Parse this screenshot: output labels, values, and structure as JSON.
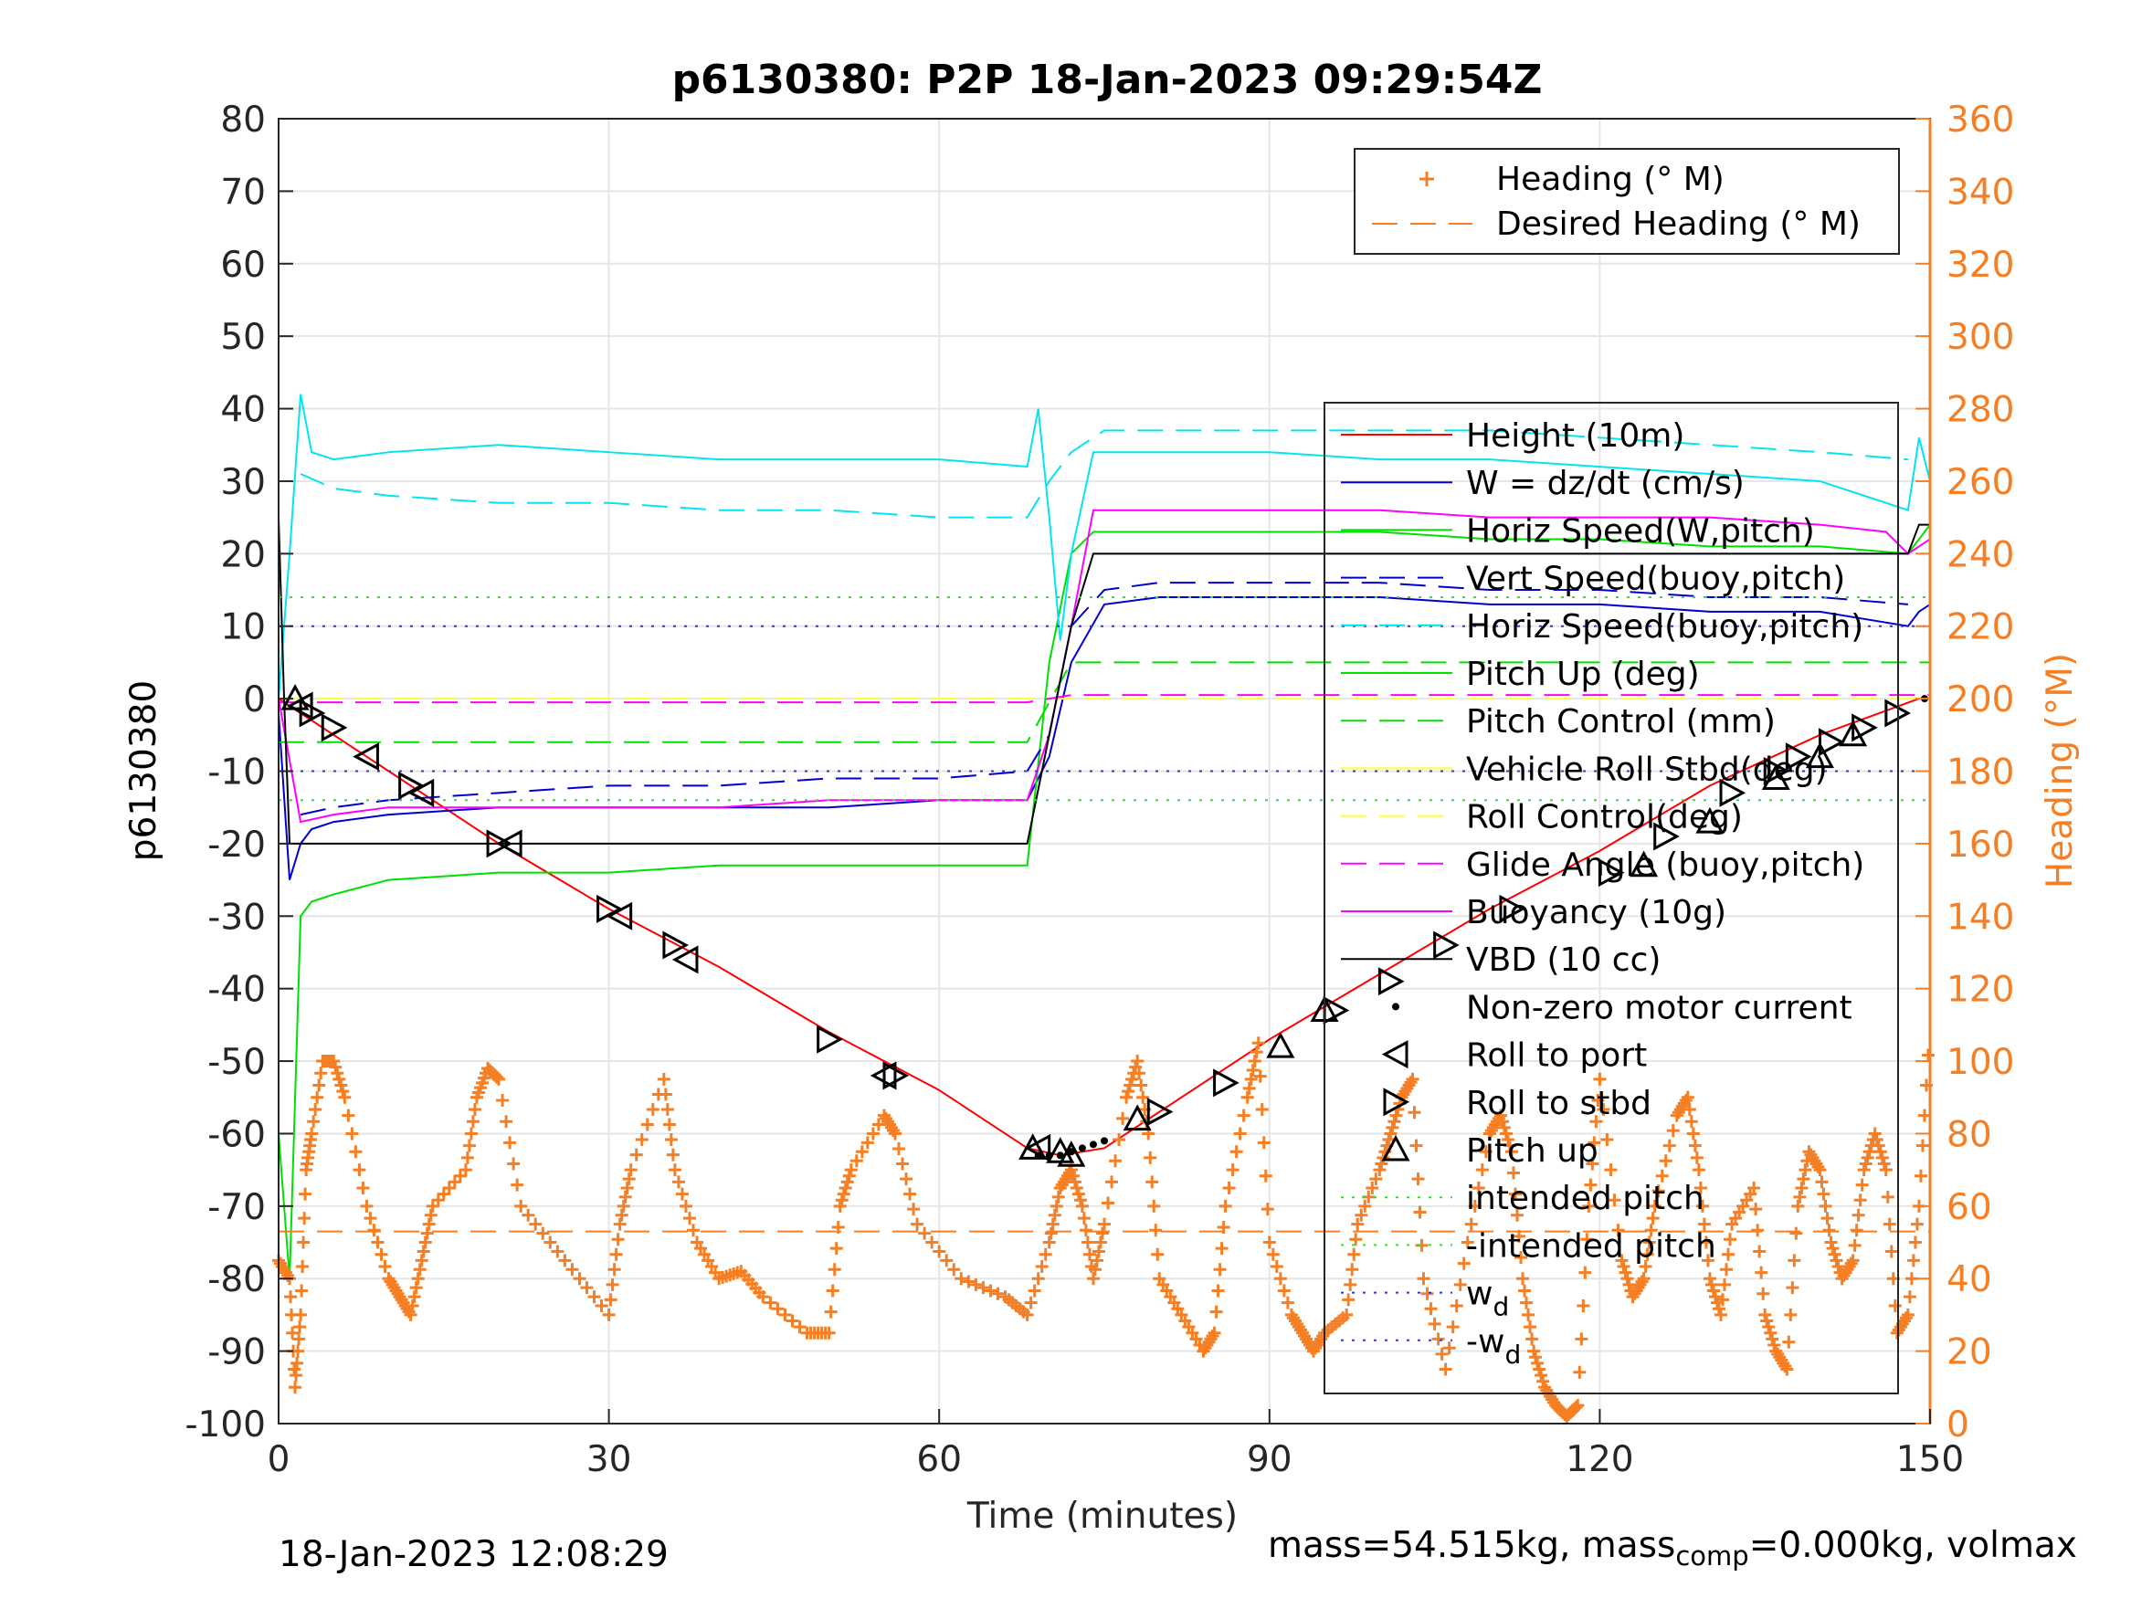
{
  "footer": {
    "left": "18-Jan-2023 12:08:29",
    "right_a": "mass=54.515kg, mass",
    "right_sub": "comp",
    "right_b": "=0.000kg, volmax"
  },
  "chart_data": {
    "type": "line",
    "title": "p6130380: P2P 18-Jan-2023 09:29:54Z",
    "xlabel": "Time (minutes)",
    "ylabel": "p6130380",
    "y2label": "Heading (°M)",
    "xlim": [
      0,
      150
    ],
    "ylim": [
      -100,
      80
    ],
    "y2lim": [
      0,
      360
    ],
    "xticks": [
      0,
      30,
      60,
      90,
      120,
      150
    ],
    "yticks": [
      80,
      70,
      60,
      50,
      40,
      30,
      20,
      10,
      0,
      -10,
      -20,
      -30,
      -40,
      -50,
      -60,
      -70,
      -80,
      -90,
      -100
    ],
    "y2ticks": [
      360,
      340,
      320,
      300,
      280,
      260,
      240,
      220,
      200,
      180,
      160,
      140,
      120,
      100,
      80,
      60,
      40,
      20,
      0
    ],
    "grid": true,
    "colors": {
      "heading": "#F57F25",
      "height": "#FF0000",
      "w": "#0000CD",
      "horiz_w": "#00E000",
      "vert_buoy": "#0000CD",
      "horiz_buoy": "#00E5EE",
      "pitch_up": "#00E000",
      "pitch_control": "#00E000",
      "roll": "#FFFF33",
      "roll_control": "#FFFF33",
      "glide_angle": "#FF00FF",
      "buoyancy": "#FF00FF",
      "vbd": "#000000",
      "intended_pitch": "#33DD33",
      "wd": "#3333DD"
    },
    "legend_heading": {
      "placement": "top-right",
      "entries": [
        "Heading (° M)",
        "Desired Heading (° M)"
      ]
    },
    "legend_main": {
      "placement": "right",
      "entries": [
        "Height (10m)",
        "W = dz/dt (cm/s)",
        "Horiz Speed(W,pitch)",
        "Vert Speed(buoy,pitch)",
        "Horiz Speed(buoy,pitch)",
        "Pitch Up (deg)",
        "Pitch Control (mm)",
        "Vehicle Roll Stbd(deg)",
        "Roll Control(deg)",
        "Glide Angle (buoy,pitch)",
        "Buoyancy (10g)",
        "VBD (10 cc)",
        "Non-zero motor current",
        "Roll to port",
        "Roll to stbd",
        "Pitch up",
        "intended pitch",
        "-intended pitch",
        "w",
        "-w"
      ],
      "wd_subscript": "d"
    },
    "series": [
      {
        "name": "Height (10m)",
        "axis": "left",
        "x": [
          0,
          2,
          10,
          20,
          30,
          40,
          50,
          60,
          68,
          71,
          75,
          80,
          90,
          100,
          110,
          120,
          130,
          140,
          149
        ],
        "y": [
          0,
          -2,
          -10,
          -20,
          -29,
          -37,
          -46,
          -54,
          -62,
          -63,
          -62,
          -57,
          -47,
          -38,
          -29,
          -21,
          -12,
          -5,
          0
        ]
      },
      {
        "name": "W = dz/dt (cm/s)",
        "axis": "left",
        "x": [
          0,
          1,
          2,
          3,
          5,
          10,
          20,
          30,
          40,
          50,
          60,
          68,
          70,
          72,
          75,
          80,
          90,
          100,
          110,
          120,
          130,
          140,
          148,
          149,
          150
        ],
        "y": [
          -2,
          -25,
          -20,
          -18,
          -17,
          -16,
          -15,
          -15,
          -15,
          -15,
          -14,
          -14,
          -8,
          5,
          13,
          14,
          14,
          14,
          13,
          13,
          12,
          12,
          10,
          12,
          13
        ]
      },
      {
        "name": "Horiz Speed(W,pitch)",
        "axis": "left",
        "x": [
          0,
          1,
          2,
          3,
          5,
          10,
          20,
          30,
          40,
          50,
          60,
          68,
          70,
          72,
          74,
          80,
          90,
          100,
          110,
          120,
          130,
          140,
          148,
          150
        ],
        "y": [
          -60,
          -80,
          -30,
          -28,
          -27,
          -25,
          -24,
          -24,
          -23,
          -23,
          -23,
          -23,
          5,
          20,
          23,
          23,
          23,
          23,
          22,
          22,
          21,
          21,
          20,
          24
        ]
      },
      {
        "name": "Vert Speed(buoy,pitch)",
        "axis": "left",
        "x": [
          2,
          5,
          10,
          20,
          30,
          40,
          50,
          60,
          68,
          70,
          72,
          75,
          80,
          90,
          100,
          110,
          120,
          130,
          140,
          148
        ],
        "y": [
          -16,
          -15,
          -14,
          -13,
          -12,
          -12,
          -11,
          -11,
          -10,
          -5,
          10,
          15,
          16,
          16,
          16,
          15,
          15,
          14,
          14,
          13
        ]
      },
      {
        "name": "Horiz Speed(buoy,pitch) (dashed)",
        "axis": "left",
        "x": [
          2,
          5,
          10,
          20,
          30,
          40,
          50,
          60,
          68,
          70,
          72,
          75,
          80,
          90,
          100,
          110,
          120,
          130,
          140,
          148
        ],
        "y": [
          31,
          29,
          28,
          27,
          27,
          26,
          26,
          25,
          25,
          30,
          34,
          37,
          37,
          37,
          37,
          37,
          36,
          35,
          34,
          33
        ]
      },
      {
        "name": "Horiz Speed(buoy,pitch)",
        "axis": "left",
        "x": [
          0,
          1,
          2,
          3,
          5,
          10,
          20,
          30,
          40,
          50,
          60,
          68,
          69,
          70,
          71,
          72,
          74,
          80,
          90,
          100,
          110,
          120,
          130,
          140,
          148,
          149,
          150
        ],
        "y": [
          0,
          20,
          42,
          34,
          33,
          34,
          35,
          34,
          33,
          33,
          33,
          32,
          40,
          25,
          8,
          20,
          34,
          34,
          34,
          33,
          33,
          32,
          31,
          30,
          26,
          36,
          30
        ]
      },
      {
        "name": "Pitch Control (mm)",
        "axis": "left",
        "x": [
          0,
          68,
          72,
          150
        ],
        "y": [
          -6,
          -6,
          5,
          5
        ]
      },
      {
        "name": "Roll Control(deg)",
        "axis": "left",
        "x": [
          0,
          150
        ],
        "y": [
          0,
          0
        ]
      },
      {
        "name": "Glide Angle (buoy,pitch)",
        "axis": "left",
        "x": [
          0,
          68,
          72,
          150
        ],
        "y": [
          -0.5,
          -0.5,
          0.5,
          0.5
        ]
      },
      {
        "name": "Buoyancy (10g)",
        "axis": "left",
        "x": [
          0,
          2,
          5,
          10,
          20,
          30,
          40,
          50,
          60,
          68,
          70,
          72,
          74,
          80,
          90,
          100,
          110,
          120,
          130,
          140,
          146,
          148,
          150
        ],
        "y": [
          0,
          -17,
          -16,
          -15,
          -15,
          -15,
          -15,
          -14,
          -14,
          -14,
          -5,
          10,
          26,
          26,
          26,
          26,
          25,
          25,
          25,
          24,
          23,
          20,
          22
        ]
      },
      {
        "name": "VBD (10 cc)",
        "axis": "left",
        "x": [
          0,
          0.5,
          1,
          2,
          66,
          68,
          72,
          74,
          148,
          149,
          150
        ],
        "y": [
          25,
          0,
          -20,
          -20,
          -20,
          -20,
          10,
          20,
          20,
          24,
          24
        ]
      },
      {
        "name": "intended pitch",
        "axis": "left",
        "x": [
          0,
          150
        ],
        "y": [
          14,
          14
        ]
      },
      {
        "name": "-intended pitch",
        "axis": "left",
        "x": [
          0,
          150
        ],
        "y": [
          -14,
          -14
        ]
      },
      {
        "name": "w_d",
        "axis": "left",
        "x": [
          0,
          150
        ],
        "y": [
          10,
          10
        ]
      },
      {
        "name": "-w_d",
        "axis": "left",
        "x": [
          0,
          150
        ],
        "y": [
          -10,
          -10
        ]
      },
      {
        "name": "Desired Heading (° M)",
        "axis": "right",
        "x": [
          0,
          150
        ],
        "y": [
          53,
          53
        ]
      },
      {
        "name": "Heading (° M)",
        "axis": "right",
        "x": [
          0,
          1,
          1.5,
          2,
          2.5,
          3,
          4,
          5,
          6,
          8,
          10,
          11,
          12,
          13,
          14,
          17,
          18,
          19,
          20,
          22,
          26,
          30,
          31,
          32,
          35,
          36,
          38,
          40,
          42,
          44,
          48,
          50,
          51,
          52,
          55,
          56,
          58,
          62,
          66,
          68,
          70,
          71,
          72,
          73,
          74,
          75,
          77,
          78,
          79,
          80,
          82,
          84,
          85,
          86,
          88,
          89,
          90,
          92,
          93,
          94,
          95,
          97,
          98,
          100,
          101,
          102,
          103,
          104,
          106,
          108,
          110,
          111,
          112,
          113,
          114,
          115,
          116,
          117,
          118,
          119,
          120,
          122,
          123,
          124,
          125,
          127,
          128,
          129,
          130,
          131,
          132,
          134,
          135,
          136,
          137,
          138,
          139,
          140,
          141,
          142,
          143,
          144,
          145,
          146,
          147,
          148,
          149,
          150
        ],
        "y": [
          45,
          40,
          10,
          30,
          70,
          80,
          100,
          100,
          90,
          60,
          40,
          35,
          30,
          45,
          60,
          70,
          90,
          98,
          95,
          60,
          45,
          30,
          55,
          70,
          95,
          70,
          50,
          40,
          42,
          35,
          25,
          25,
          60,
          70,
          85,
          80,
          55,
          40,
          35,
          30,
          50,
          65,
          70,
          60,
          40,
          55,
          90,
          100,
          80,
          40,
          30,
          20,
          25,
          60,
          90,
          105,
          50,
          30,
          25,
          20,
          25,
          30,
          55,
          70,
          80,
          90,
          95,
          40,
          15,
          50,
          80,
          85,
          75,
          40,
          20,
          10,
          5,
          2,
          5,
          60,
          95,
          45,
          35,
          40,
          60,
          85,
          90,
          70,
          40,
          30,
          55,
          65,
          30,
          20,
          15,
          60,
          75,
          70,
          50,
          40,
          45,
          70,
          80,
          70,
          25,
          30,
          60,
          110
        ]
      }
    ],
    "markers": {
      "roll_to_port": [
        [
          2,
          -1
        ],
        [
          8,
          -8
        ],
        [
          13,
          -13
        ],
        [
          21,
          -20
        ],
        [
          31,
          -30
        ],
        [
          37,
          -36
        ],
        [
          55,
          -52
        ],
        [
          69,
          -62
        ]
      ],
      "roll_to_stbd": [
        [
          3,
          -2
        ],
        [
          5,
          -4
        ],
        [
          12,
          -12
        ],
        [
          20,
          -20
        ],
        [
          30,
          -29
        ],
        [
          36,
          -34
        ],
        [
          50,
          -47
        ],
        [
          56,
          -52
        ],
        [
          80,
          -57
        ],
        [
          86,
          -53
        ],
        [
          96,
          -43
        ],
        [
          101,
          -39
        ],
        [
          106,
          -34
        ],
        [
          112,
          -29
        ],
        [
          121,
          -24
        ],
        [
          126,
          -19
        ],
        [
          132,
          -13
        ],
        [
          136,
          -10
        ],
        [
          138,
          -8
        ],
        [
          141,
          -6
        ],
        [
          144,
          -4
        ],
        [
          147,
          -2
        ]
      ],
      "pitch_up": [
        [
          1.5,
          0
        ],
        [
          68.5,
          -62
        ],
        [
          71,
          -62.5
        ],
        [
          72,
          -63
        ],
        [
          78,
          -58
        ],
        [
          91,
          -48
        ],
        [
          95,
          -43
        ],
        [
          124,
          -23
        ],
        [
          130,
          -17
        ],
        [
          136,
          -11
        ],
        [
          140,
          -8
        ],
        [
          143,
          -5
        ]
      ],
      "motor_current": [
        [
          69,
          -63
        ],
        [
          70,
          -63
        ],
        [
          71,
          -63
        ],
        [
          72,
          -62.5
        ],
        [
          73,
          -62
        ],
        [
          74,
          -61.5
        ],
        [
          75,
          -61
        ],
        [
          149.5,
          0
        ]
      ]
    }
  }
}
